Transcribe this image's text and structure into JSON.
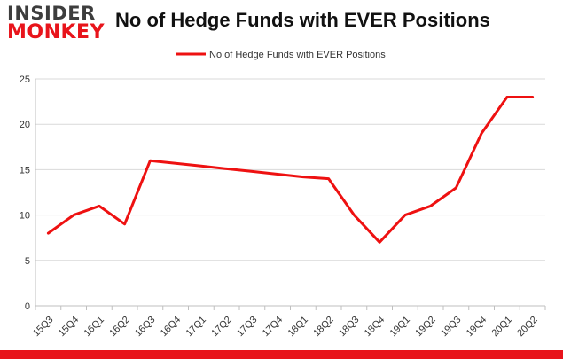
{
  "logo": {
    "line1": "INSIDER",
    "line2": "MONKEY"
  },
  "colors": {
    "series": "#ee1111",
    "brand_red": "#e8141b",
    "grid": "#d9d9d9",
    "axis": "#bfbfbf",
    "text": "#333333"
  },
  "chart_data": {
    "type": "line",
    "title": "No of Hedge Funds with EVER Positions",
    "xlabel": "",
    "ylabel": "",
    "categories": [
      "15Q3",
      "15Q4",
      "16Q1",
      "16Q2",
      "16Q3",
      "16Q4",
      "17Q1",
      "17Q2",
      "17Q3",
      "17Q4",
      "18Q1",
      "18Q2",
      "18Q3",
      "18Q4",
      "19Q1",
      "19Q2",
      "19Q3",
      "19Q4",
      "20Q1",
      "20Q2"
    ],
    "series": [
      {
        "name": "No of Hedge Funds with EVER Positions",
        "values": [
          8,
          10,
          11,
          9,
          16,
          15.7,
          15.4,
          15.1,
          14.8,
          14.5,
          14.2,
          14,
          10,
          7,
          10,
          11,
          13,
          19,
          23,
          23
        ]
      }
    ],
    "ylim": [
      0,
      25
    ],
    "yticks": [
      0,
      5,
      10,
      15,
      20,
      25
    ],
    "grid": true,
    "legend": "top-center"
  }
}
